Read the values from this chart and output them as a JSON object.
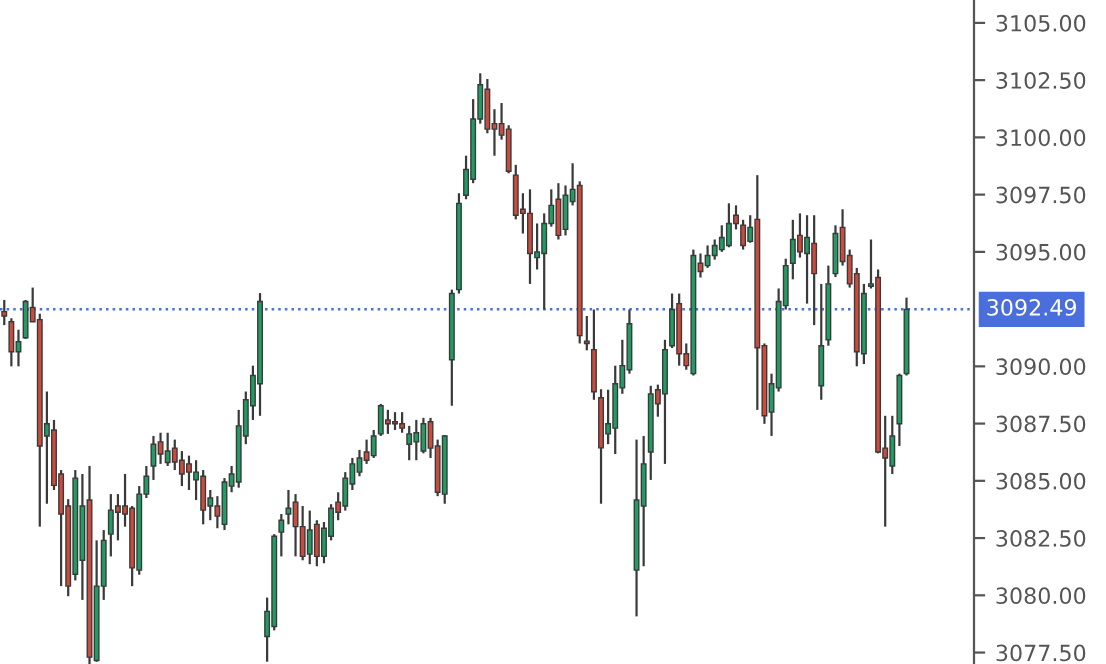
{
  "chart_data": {
    "type": "candlestick",
    "categories": [
      null,
      null,
      null,
      null,
      null,
      null,
      null,
      null,
      null,
      null,
      null,
      null,
      null,
      null,
      null,
      null,
      null,
      null,
      null,
      null,
      null,
      null,
      null,
      null,
      null,
      null,
      null,
      null,
      null,
      null,
      null,
      null,
      null,
      null,
      null,
      null,
      null,
      null,
      null,
      null,
      null,
      null,
      null,
      null,
      null,
      null,
      null,
      null,
      null,
      null,
      null,
      null,
      null,
      null,
      null,
      null,
      null,
      null,
      null,
      null,
      null,
      null,
      null,
      null,
      null,
      null,
      null,
      null,
      null,
      null,
      null,
      null,
      null,
      null,
      null,
      null,
      null,
      null,
      null,
      null,
      null,
      null,
      null,
      null,
      null,
      null,
      null,
      null,
      null,
      null,
      null,
      null,
      null,
      null,
      null,
      null,
      null,
      null,
      null,
      null,
      null,
      null,
      null,
      null,
      null,
      null,
      null,
      null,
      null,
      null,
      null,
      null,
      null,
      null,
      null,
      null,
      null,
      null,
      null,
      null,
      null,
      null,
      null,
      null,
      null,
      null,
      null,
      null
    ],
    "ohlc": [
      [
        3092.39,
        3092.9,
        3091.8,
        3092.2
      ],
      [
        3091.95,
        3092.1,
        3090.0,
        3090.64
      ],
      [
        3090.64,
        3091.6,
        3090.0,
        3091.08
      ],
      [
        3091.25,
        3092.9,
        3091.2,
        3092.83
      ],
      [
        3092.57,
        3093.44,
        3091.95,
        3091.95
      ],
      [
        3092.04,
        3092.3,
        3083.0,
        3086.52
      ],
      [
        3086.96,
        3088.9,
        3084.0,
        3087.49
      ],
      [
        3087.22,
        3087.66,
        3084.6,
        3084.8
      ],
      [
        3085.3,
        3085.47,
        3080.4,
        3083.55
      ],
      [
        3083.9,
        3084.2,
        3079.96,
        3080.4
      ],
      [
        3080.92,
        3085.47,
        3080.65,
        3085.12
      ],
      [
        3081.53,
        3085.3,
        3079.8,
        3083.9
      ],
      [
        3084.16,
        3085.65,
        3077.0,
        3077.3
      ],
      [
        3077.15,
        3082.4,
        3077.1,
        3080.4
      ],
      [
        3080.4,
        3082.85,
        3079.8,
        3082.4
      ],
      [
        3082.67,
        3084.42,
        3081.7,
        3083.72
      ],
      [
        3083.9,
        3084.42,
        3082.4,
        3083.63
      ],
      [
        3083.9,
        3085.3,
        3083.0,
        3083.55
      ],
      [
        3083.8,
        3083.9,
        3080.4,
        3081.2
      ],
      [
        3081.1,
        3084.77,
        3080.9,
        3084.42
      ],
      [
        3084.42,
        3085.65,
        3084.25,
        3085.2
      ],
      [
        3085.65,
        3086.96,
        3085.04,
        3086.6
      ],
      [
        3086.7,
        3087.1,
        3085.74,
        3086.17
      ],
      [
        3085.8,
        3087.1,
        3085.65,
        3086.3
      ],
      [
        3086.43,
        3086.8,
        3085.47,
        3085.82
      ],
      [
        3085.9,
        3086.3,
        3084.77,
        3085.3
      ],
      [
        3085.74,
        3086.1,
        3084.6,
        3085.38
      ],
      [
        3085.04,
        3085.9,
        3084.16,
        3085.38
      ],
      [
        3085.2,
        3085.47,
        3083.1,
        3083.72
      ],
      [
        3083.9,
        3084.6,
        3083.28,
        3084.25
      ],
      [
        3083.9,
        3084.33,
        3082.93,
        3083.46
      ],
      [
        3083.1,
        3085.12,
        3082.85,
        3084.95
      ],
      [
        3084.77,
        3085.65,
        3084.5,
        3085.3
      ],
      [
        3084.95,
        3088.1,
        3084.7,
        3087.4
      ],
      [
        3086.96,
        3088.9,
        3086.6,
        3088.54
      ],
      [
        3088.28,
        3090.03,
        3087.66,
        3089.6
      ],
      [
        3089.24,
        3093.2,
        3087.84,
        3092.83
      ],
      [
        3078.2,
        3079.9,
        3077.1,
        3079.3
      ],
      [
        3078.64,
        3082.67,
        3078.47,
        3082.58
      ],
      [
        3082.76,
        3083.55,
        3081.7,
        3083.28
      ],
      [
        3083.55,
        3084.6,
        3083.1,
        3083.8
      ],
      [
        3084.07,
        3084.42,
        3081.7,
        3083.0
      ],
      [
        3083.0,
        3083.9,
        3081.53,
        3081.7
      ],
      [
        3081.8,
        3083.7,
        3081.36,
        3082.85
      ],
      [
        3083.1,
        3083.28,
        3081.27,
        3081.7
      ],
      [
        3081.7,
        3083.2,
        3081.4,
        3082.93
      ],
      [
        3082.58,
        3083.98,
        3082.4,
        3083.8
      ],
      [
        3084.07,
        3084.5,
        3083.28,
        3083.63
      ],
      [
        3083.9,
        3085.38,
        3083.7,
        3085.12
      ],
      [
        3084.86,
        3086.0,
        3084.6,
        3085.74
      ],
      [
        3085.38,
        3086.35,
        3085.2,
        3086.0
      ],
      [
        3086.26,
        3086.8,
        3085.74,
        3085.9
      ],
      [
        3086.1,
        3087.22,
        3086.0,
        3086.96
      ],
      [
        3087.05,
        3088.36,
        3086.96,
        3088.28
      ],
      [
        3087.66,
        3088.1,
        3087.05,
        3087.49
      ],
      [
        3087.58,
        3088.0,
        3087.22,
        3087.49
      ],
      [
        3087.49,
        3088.0,
        3087.1,
        3087.3
      ],
      [
        3086.6,
        3087.4,
        3085.9,
        3087.05
      ],
      [
        3086.7,
        3087.66,
        3085.9,
        3087.1
      ],
      [
        3086.3,
        3087.75,
        3086.2,
        3087.49
      ],
      [
        3087.58,
        3087.75,
        3086.0,
        3086.43
      ],
      [
        3086.52,
        3086.8,
        3084.33,
        3084.5
      ],
      [
        3084.42,
        3087.0,
        3084.0,
        3086.96
      ],
      [
        3090.29,
        3093.35,
        3088.28,
        3093.18
      ],
      [
        3093.35,
        3097.56,
        3093.18,
        3097.12
      ],
      [
        3097.47,
        3099.2,
        3097.3,
        3098.6
      ],
      [
        3098.17,
        3101.67,
        3098.0,
        3100.8
      ],
      [
        3100.8,
        3102.8,
        3100.6,
        3102.3
      ],
      [
        3102.1,
        3102.55,
        3100.18,
        3100.36
      ],
      [
        3100.6,
        3101.23,
        3099.2,
        3100.36
      ],
      [
        3100.6,
        3101.5,
        3099.9,
        3100.1
      ],
      [
        3100.36,
        3100.53,
        3098.43,
        3098.52
      ],
      [
        3098.35,
        3098.8,
        3096.42,
        3096.6
      ],
      [
        3096.86,
        3097.56,
        3095.8,
        3096.68
      ],
      [
        3096.68,
        3097.73,
        3093.6,
        3094.93
      ],
      [
        3094.75,
        3096.24,
        3094.23,
        3095.0
      ],
      [
        3094.93,
        3096.68,
        3092.48,
        3096.24
      ],
      [
        3096.24,
        3097.73,
        3096.1,
        3097.03
      ],
      [
        3097.3,
        3098.0,
        3095.54,
        3095.72
      ],
      [
        3095.98,
        3097.9,
        3095.72,
        3097.47
      ],
      [
        3097.2,
        3098.87,
        3097.03,
        3097.73
      ],
      [
        3097.9,
        3098.08,
        3091.0,
        3091.34
      ],
      [
        3091.1,
        3092.2,
        3090.7,
        3091.0
      ],
      [
        3090.73,
        3092.48,
        3088.54,
        3088.89
      ],
      [
        3088.63,
        3089.0,
        3084.0,
        3086.44
      ],
      [
        3087.05,
        3088.98,
        3086.6,
        3087.49
      ],
      [
        3087.3,
        3090.03,
        3086.17,
        3089.24
      ],
      [
        3089.06,
        3091.16,
        3088.8,
        3090.03
      ],
      [
        3089.85,
        3092.48,
        3089.68,
        3091.86
      ],
      [
        3081.1,
        3086.8,
        3079.08,
        3084.16
      ],
      [
        3083.9,
        3086.96,
        3081.27,
        3085.74
      ],
      [
        3086.26,
        3089.15,
        3085.04,
        3088.8
      ],
      [
        3088.98,
        3089.2,
        3087.8,
        3088.36
      ],
      [
        3088.8,
        3091.16,
        3085.74,
        3090.73
      ],
      [
        3090.9,
        3093.18,
        3090.8,
        3092.48
      ],
      [
        3092.74,
        3093.18,
        3090.03,
        3090.55
      ],
      [
        3090.55,
        3091.0,
        3089.85,
        3090.03
      ],
      [
        3089.68,
        3095.1,
        3089.6,
        3094.84
      ],
      [
        3094.5,
        3094.93,
        3093.88,
        3094.14
      ],
      [
        3094.4,
        3095.28,
        3094.3,
        3094.84
      ],
      [
        3094.84,
        3095.54,
        3094.66,
        3095.28
      ],
      [
        3095.1,
        3096.16,
        3095.0,
        3095.63
      ],
      [
        3095.28,
        3097.12,
        3095.2,
        3096.24
      ],
      [
        3096.6,
        3097.03,
        3095.98,
        3096.24
      ],
      [
        3096.16,
        3096.4,
        3095.1,
        3095.28
      ],
      [
        3095.46,
        3096.6,
        3095.4,
        3096.07
      ],
      [
        3096.42,
        3098.35,
        3088.1,
        3090.81
      ],
      [
        3090.9,
        3091.0,
        3087.49,
        3087.84
      ],
      [
        3088.0,
        3089.68,
        3086.96,
        3089.24
      ],
      [
        3089.06,
        3093.4,
        3088.9,
        3092.83
      ],
      [
        3092.65,
        3094.7,
        3092.48,
        3094.4
      ],
      [
        3094.5,
        3096.4,
        3093.8,
        3095.54
      ],
      [
        3095.72,
        3096.68,
        3094.75,
        3095.0
      ],
      [
        3094.93,
        3096.6,
        3092.74,
        3095.63
      ],
      [
        3095.37,
        3096.6,
        3091.8,
        3094.05
      ],
      [
        3089.15,
        3093.6,
        3088.54,
        3090.9
      ],
      [
        3091.16,
        3094.4,
        3090.9,
        3093.6
      ],
      [
        3094.05,
        3096.16,
        3093.9,
        3095.8
      ],
      [
        3096.07,
        3096.86,
        3094.4,
        3094.58
      ],
      [
        3094.84,
        3095.1,
        3093.44,
        3093.6
      ],
      [
        3094.05,
        3094.3,
        3090.0,
        3090.64
      ],
      [
        3090.55,
        3093.6,
        3090.1,
        3093.18
      ],
      [
        3093.5,
        3095.54,
        3093.4,
        3093.6
      ],
      [
        3093.88,
        3094.23,
        3086.2,
        3086.26
      ],
      [
        3086.43,
        3087.84,
        3083.0,
        3086.0
      ],
      [
        3085.65,
        3087.84,
        3085.3,
        3086.96
      ],
      [
        3087.49,
        3089.68,
        3086.52,
        3089.6
      ],
      [
        3089.68,
        3093.0,
        3089.6,
        3092.49
      ]
    ],
    "colors": [
      "#cc4b3c",
      "#cc4b3c",
      "#1f9d63",
      "#1f9d63",
      "#cc4b3c",
      "#cc4b3c",
      "#1f9d63",
      "#cc4b3c",
      "#cc4b3c",
      "#cc4b3c",
      "#1f9d63",
      "#1f9d63",
      "#cc4b3c",
      "#1f9d63",
      "#1f9d63",
      "#1f9d63",
      "#cc4b3c",
      "#cc4b3c",
      "#cc4b3c",
      "#1f9d63",
      "#1f9d63",
      "#1f9d63",
      "#cc4b3c",
      "#1f9d63",
      "#cc4b3c",
      "#cc4b3c",
      "#cc4b3c",
      "#1f9d63",
      "#cc4b3c",
      "#1f9d63",
      "#cc4b3c",
      "#1f9d63",
      "#1f9d63",
      "#1f9d63",
      "#1f9d63",
      "#1f9d63",
      "#1f9d63",
      "#1f9d63",
      "#1f9d63",
      "#1f9d63",
      "#1f9d63",
      "#cc4b3c",
      "#cc4b3c",
      "#1f9d63",
      "#cc4b3c",
      "#1f9d63",
      "#1f9d63",
      "#cc4b3c",
      "#1f9d63",
      "#1f9d63",
      "#1f9d63",
      "#cc4b3c",
      "#1f9d63",
      "#1f9d63",
      "#cc4b3c",
      "#cc4b3c",
      "#cc4b3c",
      "#1f9d63",
      "#1f9d63",
      "#1f9d63",
      "#cc4b3c",
      "#cc4b3c",
      "#1f9d63",
      "#1f9d63",
      "#1f9d63",
      "#1f9d63",
      "#1f9d63",
      "#1f9d63",
      "#cc4b3c",
      "#cc4b3c",
      "#cc4b3c",
      "#cc4b3c",
      "#cc4b3c",
      "#cc4b3c",
      "#cc4b3c",
      "#1f9d63",
      "#1f9d63",
      "#1f9d63",
      "#cc4b3c",
      "#1f9d63",
      "#1f9d63",
      "#cc4b3c",
      "#cc4b3c",
      "#cc4b3c",
      "#cc4b3c",
      "#1f9d63",
      "#1f9d63",
      "#1f9d63",
      "#1f9d63",
      "#1f9d63",
      "#1f9d63",
      "#1f9d63",
      "#cc4b3c",
      "#1f9d63",
      "#1f9d63",
      "#cc4b3c",
      "#cc4b3c",
      "#1f9d63",
      "#cc4b3c",
      "#1f9d63",
      "#1f9d63",
      "#1f9d63",
      "#1f9d63",
      "#cc4b3c",
      "#cc4b3c",
      "#1f9d63",
      "#cc4b3c",
      "#cc4b3c",
      "#1f9d63",
      "#1f9d63",
      "#1f9d63",
      "#1f9d63",
      "#cc4b3c",
      "#1f9d63",
      "#cc4b3c",
      "#1f9d63",
      "#1f9d63",
      "#1f9d63",
      "#cc4b3c",
      "#cc4b3c",
      "#cc4b3c",
      "#1f9d63",
      "#1f9d63",
      "#cc4b3c",
      "#cc4b3c",
      "#1f9d63",
      "#1f9d63",
      "#1f9d63"
    ],
    "ylim": [
      3077.0,
      3106.0
    ],
    "yticks": [
      {
        "value": 3077.5,
        "label": "3077.50"
      },
      {
        "value": 3080,
        "label": "3080.00"
      },
      {
        "value": 3082.5,
        "label": "3082.50"
      },
      {
        "value": 3085,
        "label": "3085.00"
      },
      {
        "value": 3087.5,
        "label": "3087.50"
      },
      {
        "value": 3090,
        "label": "3090.00"
      },
      {
        "value": 3095,
        "label": "3095.00"
      },
      {
        "value": 3097.5,
        "label": "3097.50"
      },
      {
        "value": 3100,
        "label": "3100.00"
      },
      {
        "value": 3102.5,
        "label": "3102.50"
      },
      {
        "value": 3105,
        "label": "3105.00"
      }
    ],
    "ref_lines": [
      {
        "axis": "y",
        "value": 3092.49,
        "label": "3092.49",
        "color": "#4a6fdc",
        "line_style": "dotted"
      }
    ],
    "tick_labels": "y",
    "grid": false,
    "legend": false
  }
}
